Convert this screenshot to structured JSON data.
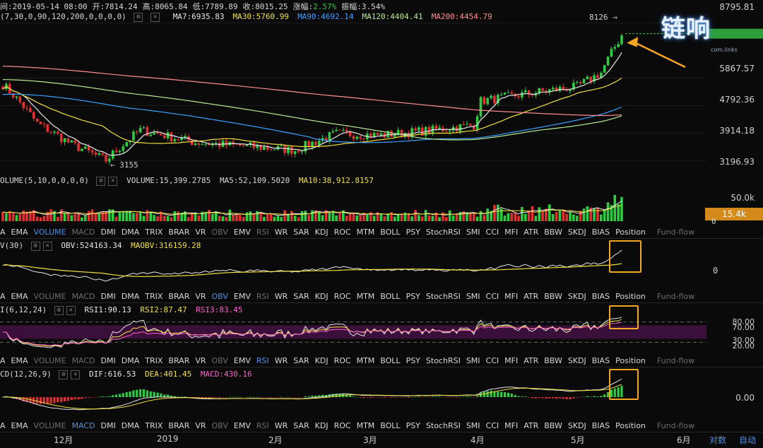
{
  "header": {
    "line1": [
      {
        "text": "间:2019-05-14 08:00",
        "color": "#d8d8d8"
      },
      {
        "text": "开:7814.24",
        "color": "#d8d8d8"
      },
      {
        "text": "高:8065.84",
        "color": "#d8d8d8"
      },
      {
        "text": "低:7789.89",
        "color": "#d8d8d8"
      },
      {
        "text": "收:8015.25",
        "color": "#d8d8d8"
      },
      {
        "text": "涨幅:",
        "color": "#d8d8d8"
      },
      {
        "text": "2.57%",
        "color": "#2ecc40"
      },
      {
        "text": "振幅:3.54%",
        "color": "#d8d8d8"
      }
    ],
    "params": "(7,30,0,90,120,200,0,0,0,0)",
    "ma_items": [
      {
        "text": "MA7:6935.83",
        "color": "#e8e8e8"
      },
      {
        "text": "MA30:5760.99",
        "color": "#f0e040"
      },
      {
        "text": "MA90:4692.14",
        "color": "#3aa0ff"
      },
      {
        "text": "MA120:4404.41",
        "color": "#b8e890"
      },
      {
        "text": "MA200:4454.79",
        "color": "#ff8f8f"
      }
    ],
    "last_marker": "8126 →"
  },
  "logo_text": "链响",
  "logo_sub": "com.links",
  "price_axis": [
    "8795.81",
    "5867.57",
    "4792.36",
    "3914.18",
    "3196.93"
  ],
  "price_low_marker": "← 3155",
  "volume": {
    "label_name": "OLUME(5,10,0,0,0,0)",
    "volume_value": "VOLUME:15,399.2785",
    "ma5": "MA5:52,109.5020",
    "ma10": "MA10:38,912.8157",
    "axis_top": "50.0k",
    "axis_badge": "15.4k",
    "axis_zero": "0"
  },
  "obv": {
    "label_name": "V(30)",
    "obv_value": "OBV:524163.34",
    "maobv_value": "MAOBV:316159.28",
    "axis_zero": "0"
  },
  "rsi": {
    "label_name": "I(6,12,24)",
    "rsi1": "RSI1:90.13",
    "rsi2": "RSI2:87.47",
    "rsi3": "RSI3:83.45",
    "axis": [
      "80.00",
      "70.00",
      "30.00",
      "20.00"
    ]
  },
  "macd": {
    "label_name": "CD(12,26,9)",
    "dif": "DIF:616.53",
    "dea": "DEA:401.45",
    "macd": "MACD:430.16",
    "axis_zero": "0.00"
  },
  "indicator_tabs": [
    "A",
    "EMA",
    "VOLUME",
    "MACD",
    "DMI",
    "DMA",
    "TRIX",
    "BRAR",
    "VR",
    "OBV",
    "EMV",
    "RSI",
    "WR",
    "SAR",
    "KDJ",
    "ROC",
    "MTM",
    "BOLL",
    "PSY",
    "StochRSI",
    "SMI",
    "CCI",
    "MFI",
    "ATR",
    "BBW",
    "SKDJ",
    "BIAS",
    "Position",
    "Fund-flow"
  ],
  "tab_states": {
    "vol": {
      "active": "VOLUME",
      "dim": [
        "MACD",
        "OBV",
        "RSI",
        "Fund-flow"
      ]
    },
    "obv": {
      "active": "OBV",
      "dim": [
        "VOLUME",
        "MACD",
        "RSI",
        "Fund-flow"
      ]
    },
    "rsi": {
      "active": "RSI",
      "dim": [
        "VOLUME",
        "MACD",
        "OBV",
        "Fund-flow"
      ]
    },
    "macd": {
      "active": "MACD",
      "dim": [
        "VOLUME",
        "OBV",
        "RSI",
        "Fund-flow"
      ]
    }
  },
  "time_axis": [
    "12月",
    "2019",
    "2月",
    "3月",
    "4月",
    "5月",
    "6月"
  ],
  "bottom_links": [
    "对数",
    "自动"
  ],
  "colors": {
    "up": "#2ecc40",
    "down": "#e03030",
    "highlight": "#f5a623",
    "rsi_band": "#3a0f3a"
  },
  "chart_data": {
    "type": "candlestick",
    "x_range": [
      "2018-11-15",
      "2019-05-14"
    ],
    "price_range": [
      2900,
      9000
    ],
    "price_ticks": [
      8795.81,
      5867.57,
      4792.36,
      3914.18,
      3196.93
    ],
    "anchors": [
      {
        "date": "2018-11-15",
        "close": 5600
      },
      {
        "date": "2018-11-25",
        "close": 4200
      },
      {
        "date": "2018-12-05",
        "close": 3600
      },
      {
        "date": "2018-12-15",
        "close": 3200
      },
      {
        "date": "2018-12-25",
        "close": 4000
      },
      {
        "date": "2019-01-10",
        "close": 3650
      },
      {
        "date": "2019-01-25",
        "close": 3550
      },
      {
        "date": "2019-02-08",
        "close": 3450
      },
      {
        "date": "2019-02-20",
        "close": 3900
      },
      {
        "date": "2019-03-05",
        "close": 3850
      },
      {
        "date": "2019-03-20",
        "close": 4000
      },
      {
        "date": "2019-04-01",
        "close": 4150
      },
      {
        "date": "2019-04-03",
        "close": 4950
      },
      {
        "date": "2019-04-20",
        "close": 5300
      },
      {
        "date": "2019-05-01",
        "close": 5500
      },
      {
        "date": "2019-05-08",
        "close": 6100
      },
      {
        "date": "2019-05-14",
        "close": 8015.25
      }
    ],
    "low_marker": {
      "value": 3155
    },
    "last_marker": {
      "value": 8126
    },
    "ma_values": {
      "MA7": 6935.83,
      "MA30": 5760.99,
      "MA90": 4692.14,
      "MA120": 4404.41,
      "MA200": 4454.79
    },
    "volume_last": 15399.2785,
    "rsi_last": {
      "RSI1": 90.13,
      "RSI2": 87.47,
      "RSI3": 83.45
    },
    "macd_last": {
      "DIF": 616.53,
      "DEA": 401.45,
      "MACD": 430.16
    },
    "obv_last": {
      "OBV": 524163.34,
      "MAOBV": 316159.28
    }
  }
}
